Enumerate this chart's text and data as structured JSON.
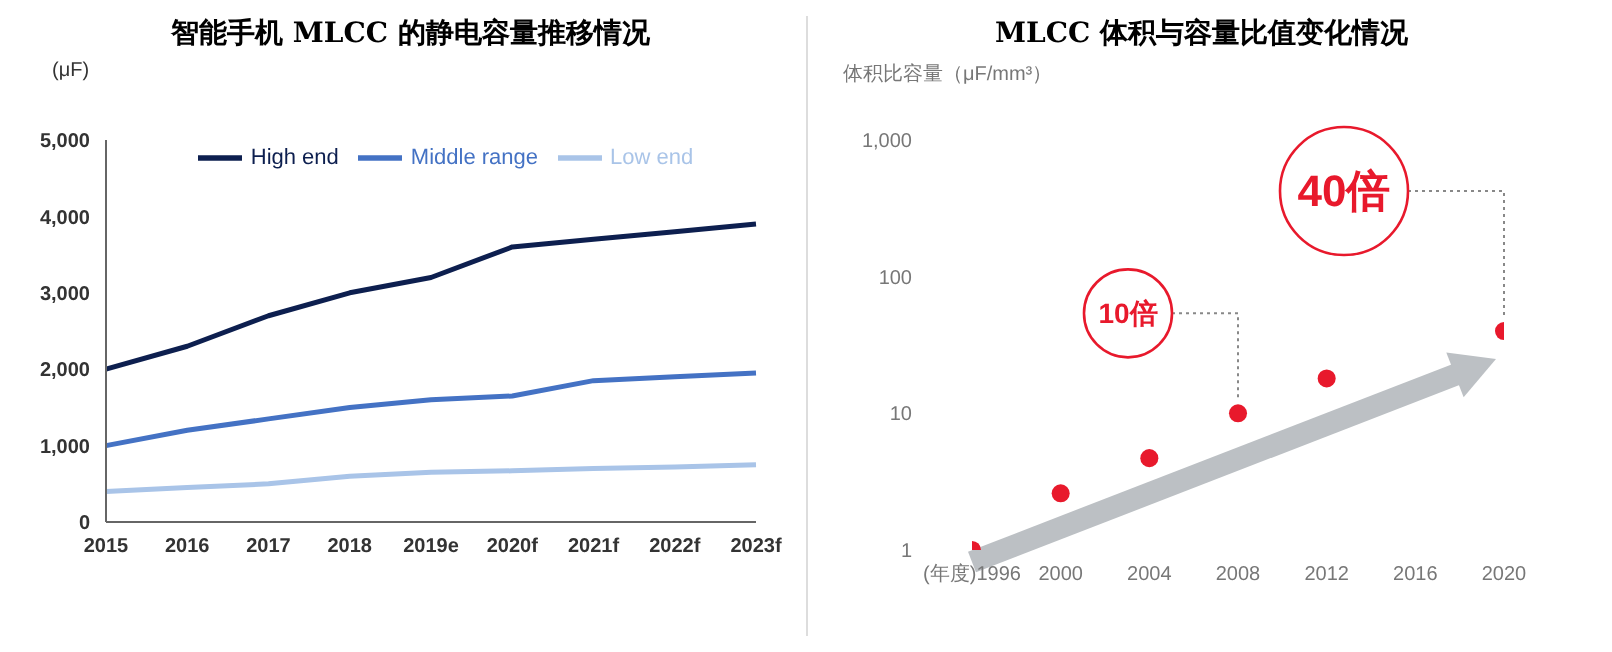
{
  "chart_data": [
    {
      "type": "line",
      "title": "智能手机 MLCC 的静电容量推移情况",
      "ylabel": "(μF)",
      "categories": [
        "2015",
        "2016",
        "2017",
        "2018",
        "2019e",
        "2020f",
        "2021f",
        "2022f",
        "2023f"
      ],
      "series": [
        {
          "name": "High end",
          "color": "#0d1f4f",
          "values": [
            2000,
            2300,
            2700,
            3000,
            3200,
            3600,
            3700,
            3800,
            3900
          ]
        },
        {
          "name": "Middle range",
          "color": "#4472c4",
          "values": [
            1000,
            1200,
            1350,
            1500,
            1600,
            1650,
            1850,
            1900,
            1950
          ]
        },
        {
          "name": "Low end",
          "color": "#a9c4e8",
          "values": [
            400,
            450,
            500,
            600,
            650,
            670,
            700,
            720,
            750
          ]
        }
      ],
      "ylim": [
        0,
        5000
      ],
      "yticks": [
        0,
        {
          "value": 1000,
          "label": "1,000"
        },
        {
          "value": 2000,
          "label": "2,000"
        },
        {
          "value": 3000,
          "label": "3,000"
        },
        {
          "value": 4000,
          "label": "4,000"
        },
        {
          "value": 5000,
          "label": "5,000"
        }
      ],
      "legend": "top",
      "grid": false,
      "marker": "none"
    },
    {
      "type": "scatter",
      "title": "MLCC 体积与容量比值变化情况",
      "ylabel": "体积比容量（μF/mm³）",
      "x": [
        1996,
        2000,
        2004,
        2008,
        2012,
        2020
      ],
      "values": [
        1,
        2.6,
        4.7,
        10,
        18,
        40
      ],
      "color": "#e8192c",
      "log": "y",
      "ylim": [
        1,
        1000
      ],
      "yticks": [
        1,
        10,
        100,
        {
          "value": 1000,
          "label": "1,000"
        }
      ],
      "xlim": [
        1996,
        2020
      ],
      "xticks": [
        {
          "value": 1996,
          "label": "(年度)1996"
        },
        2000,
        2004,
        2008,
        2012,
        2016,
        2020
      ],
      "annotations": [
        {
          "text": "10倍",
          "x": 2008,
          "y": 10
        },
        {
          "text": "40倍",
          "x": 2020,
          "y": 40
        }
      ],
      "grid": false,
      "marker": "circle"
    }
  ]
}
